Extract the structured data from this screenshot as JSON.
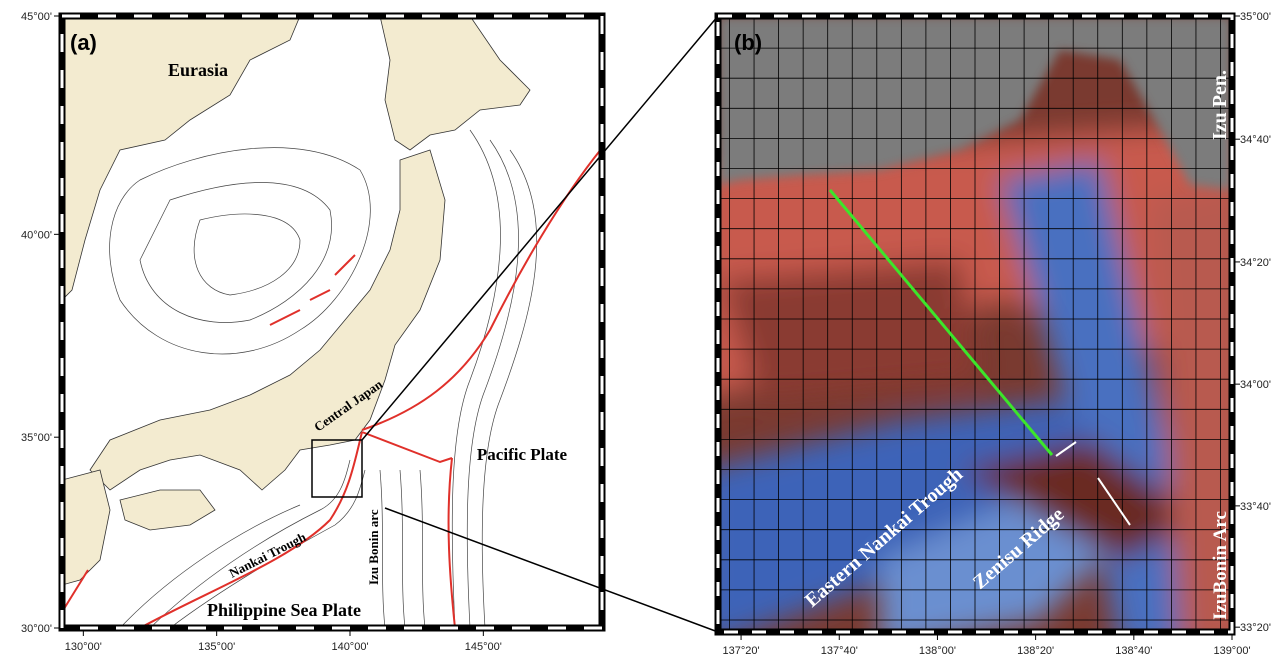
{
  "panel_a": {
    "label": "(a)",
    "xlim": [
      129.2,
      149.45
    ],
    "ylim": [
      30,
      45
    ],
    "xticks": [
      {
        "value": 130,
        "label": "130°00'"
      },
      {
        "value": 135,
        "label": "135°00'"
      },
      {
        "value": 140,
        "label": "140°00'"
      },
      {
        "value": 145,
        "label": "145°00'"
      }
    ],
    "yticks": [
      {
        "value": 30,
        "label": "30°00'"
      },
      {
        "value": 35,
        "label": "35°00'"
      },
      {
        "value": 40,
        "label": "40°00'"
      },
      {
        "value": 45,
        "label": "45°00'"
      }
    ],
    "annotations": [
      "Eurasia",
      "Central Japan",
      "Pacific Plate",
      "Nankai Trough",
      "Izu Bonin arc",
      "Philippine Sea Plate"
    ]
  },
  "panel_b": {
    "label": "(b)",
    "xlim": [
      137.255,
      139.0
    ],
    "ylim": [
      33.32,
      35.0
    ],
    "xticks": [
      {
        "value": 137.3333,
        "label": "137°20'"
      },
      {
        "value": 137.6667,
        "label": "137°40'"
      },
      {
        "value": 138,
        "label": "138°00'"
      },
      {
        "value": 138.3333,
        "label": "138°20'"
      },
      {
        "value": 138.6667,
        "label": "138°40'"
      },
      {
        "value": 139,
        "label": "139°00'"
      }
    ],
    "yticks": [
      {
        "value": 33.3333,
        "label": "33°20'"
      },
      {
        "value": 33.6667,
        "label": "33°40'"
      },
      {
        "value": 34,
        "label": "34°00'"
      },
      {
        "value": 34.3333,
        "label": "34°20'"
      },
      {
        "value": 34.6667,
        "label": "34°40'"
      },
      {
        "value": 35,
        "label": "35°00'"
      }
    ],
    "annotations": [
      "Izu Pen.",
      "Eastern Nankai Trough",
      "Zenisu Ridge",
      "IzuBonin Arc"
    ]
  }
}
